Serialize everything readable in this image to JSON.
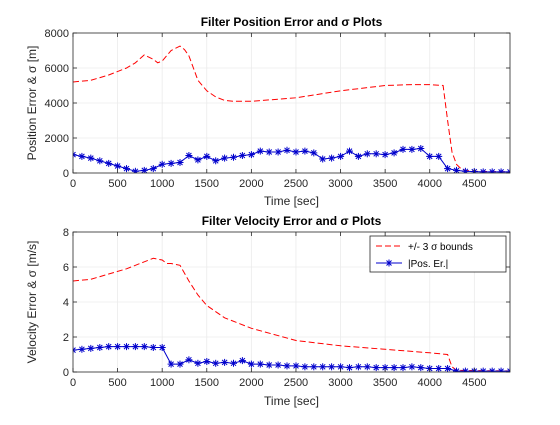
{
  "figure": {
    "background": "#ffffff",
    "axes_color": "#262626",
    "grid_color": "#ebebeb"
  },
  "chart_data": [
    {
      "type": "line",
      "title": "Filter Position Error and σ Plots",
      "xlabel": "Time [sec]",
      "ylabel": "Position Error & σ [m]",
      "xlim": [
        0,
        4900
      ],
      "ylim": [
        0,
        8000
      ],
      "xticks": [
        0,
        500,
        1000,
        1500,
        2000,
        2500,
        3000,
        3500,
        4000,
        4500
      ],
      "yticks": [
        0,
        2000,
        4000,
        6000,
        8000
      ],
      "xtick_labels": [
        "0",
        "500",
        "1000",
        "1500",
        "2000",
        "2500",
        "3000",
        "3500",
        "4000",
        "4500"
      ],
      "ytick_labels": [
        "0",
        "2000",
        "4000",
        "6000",
        "8000"
      ],
      "grid": true,
      "legend": null,
      "series": [
        {
          "key": "bound",
          "style": "dashed",
          "marker": "none",
          "color": "#ff0000",
          "x": [
            0,
            200,
            400,
            600,
            700,
            800,
            900,
            950,
            1000,
            1100,
            1200,
            1250,
            1300,
            1350,
            1400,
            1500,
            1600,
            1700,
            1800,
            2000,
            2500,
            3000,
            3500,
            3800,
            4000,
            4150,
            4200,
            4250,
            4300,
            4350,
            4400,
            4500,
            4700,
            4900
          ],
          "y": [
            5200,
            5300,
            5600,
            6000,
            6300,
            6750,
            6500,
            6300,
            6400,
            7000,
            7250,
            7050,
            6700,
            6000,
            5300,
            4700,
            4350,
            4150,
            4100,
            4100,
            4300,
            4700,
            5000,
            5050,
            5050,
            5000,
            3000,
            1200,
            500,
            250,
            150,
            100,
            80,
            70
          ]
        },
        {
          "key": "err",
          "style": "solid",
          "marker": "asterisk",
          "color": "#0000cc",
          "x": [
            0,
            100,
            200,
            300,
            400,
            500,
            600,
            700,
            800,
            900,
            1000,
            1100,
            1200,
            1300,
            1400,
            1500,
            1600,
            1700,
            1800,
            1900,
            2000,
            2100,
            2200,
            2300,
            2400,
            2500,
            2600,
            2700,
            2800,
            2900,
            3000,
            3100,
            3200,
            3300,
            3400,
            3500,
            3600,
            3700,
            3800,
            3900,
            4000,
            4100,
            4200,
            4300,
            4400,
            4500,
            4600,
            4700,
            4800,
            4900
          ],
          "y": [
            1050,
            950,
            850,
            700,
            550,
            400,
            250,
            100,
            150,
            250,
            500,
            550,
            600,
            1000,
            750,
            950,
            700,
            850,
            900,
            1000,
            1050,
            1250,
            1200,
            1200,
            1300,
            1200,
            1250,
            1150,
            800,
            850,
            950,
            1250,
            950,
            1100,
            1100,
            1050,
            1150,
            1350,
            1350,
            1400,
            950,
            950,
            250,
            150,
            100,
            80,
            60,
            60,
            60,
            60
          ]
        }
      ]
    },
    {
      "type": "line",
      "title": "Filter Velocity Error and σ Plots",
      "xlabel": "Time [sec]",
      "ylabel": "Velocity Error & σ [m/s]",
      "xlim": [
        0,
        4900
      ],
      "ylim": [
        0,
        8
      ],
      "xticks": [
        0,
        500,
        1000,
        1500,
        2000,
        2500,
        3000,
        3500,
        4000,
        4500
      ],
      "yticks": [
        0,
        2,
        4,
        6,
        8
      ],
      "xtick_labels": [
        "0",
        "500",
        "1000",
        "1500",
        "2000",
        "2500",
        "3000",
        "3500",
        "4000",
        "4500"
      ],
      "ytick_labels": [
        "0",
        "2",
        "4",
        "6",
        "8"
      ],
      "grid": true,
      "legend": {
        "position": "top-right",
        "entries": [
          "+/- 3 σ bounds",
          "|Pos. Er.|"
        ]
      },
      "series": [
        {
          "key": "bound",
          "name": "+/- 3 σ bounds",
          "style": "dashed",
          "marker": "none",
          "color": "#ff0000",
          "x": [
            0,
            200,
            400,
            600,
            800,
            900,
            1000,
            1050,
            1100,
            1200,
            1300,
            1400,
            1500,
            1700,
            2000,
            2500,
            3000,
            3500,
            4000,
            4200,
            4250,
            4300,
            4500,
            4900
          ],
          "y": [
            5.2,
            5.3,
            5.6,
            5.9,
            6.3,
            6.5,
            6.4,
            6.2,
            6.2,
            6.1,
            5.2,
            4.4,
            3.8,
            3.1,
            2.5,
            1.8,
            1.5,
            1.3,
            1.1,
            1.0,
            0.3,
            0.1,
            0.08,
            0.06
          ]
        },
        {
          "key": "err",
          "name": "|Pos. Er.|",
          "style": "solid",
          "marker": "asterisk",
          "color": "#0000cc",
          "x": [
            0,
            100,
            200,
            300,
            400,
            500,
            600,
            700,
            800,
            900,
            1000,
            1100,
            1200,
            1300,
            1400,
            1500,
            1600,
            1700,
            1800,
            1900,
            2000,
            2100,
            2200,
            2300,
            2400,
            2500,
            2600,
            2700,
            2800,
            2900,
            3000,
            3100,
            3200,
            3300,
            3400,
            3500,
            3600,
            3700,
            3800,
            3900,
            4000,
            4100,
            4200,
            4300,
            4400,
            4500,
            4600,
            4700,
            4800,
            4900
          ],
          "y": [
            1.25,
            1.3,
            1.35,
            1.4,
            1.45,
            1.45,
            1.45,
            1.45,
            1.45,
            1.4,
            1.4,
            0.45,
            0.45,
            0.7,
            0.5,
            0.6,
            0.5,
            0.55,
            0.5,
            0.65,
            0.45,
            0.45,
            0.4,
            0.4,
            0.35,
            0.35,
            0.3,
            0.3,
            0.3,
            0.3,
            0.3,
            0.25,
            0.3,
            0.3,
            0.25,
            0.25,
            0.25,
            0.25,
            0.3,
            0.25,
            0.2,
            0.2,
            0.2,
            0.05,
            0.05,
            0.05,
            0.05,
            0.05,
            0.05,
            0.05
          ]
        }
      ]
    }
  ]
}
